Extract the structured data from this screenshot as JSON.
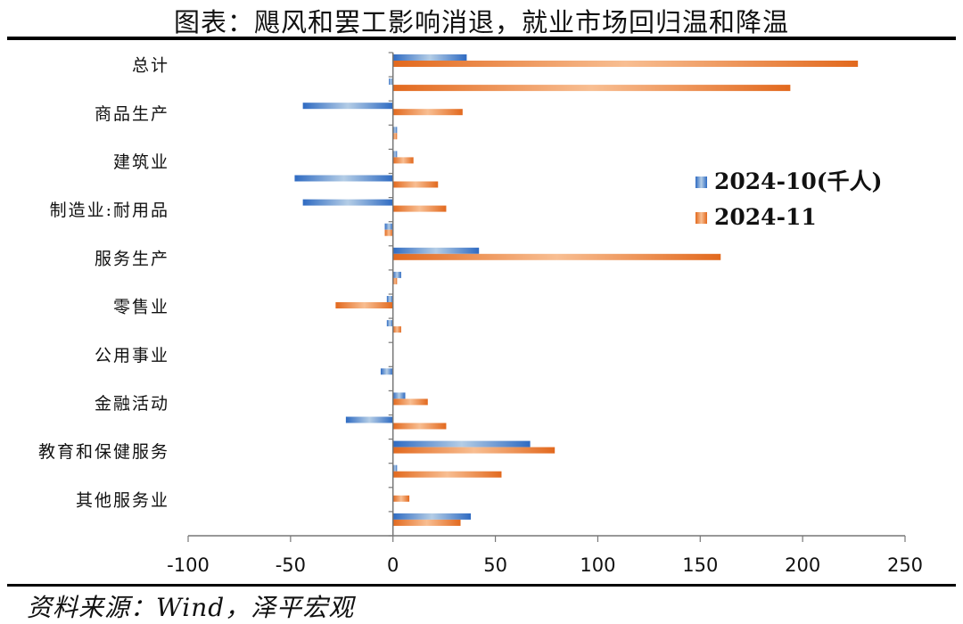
{
  "title": "图表：飓风和罢工影响消退，就业市场回归温和降温",
  "source": "资料来源：Wind，泽平宏观",
  "chart_data": {
    "type": "bar",
    "orientation": "horizontal",
    "title": "图表：飓风和罢工影响消退，就业市场回归温和降温",
    "xlim": [
      -100,
      250
    ],
    "xticks": [
      -100,
      -50,
      0,
      50,
      100,
      150,
      200,
      250
    ],
    "grid": false,
    "legend_position": "right",
    "categories": [
      "总计",
      "",
      "商品生产",
      "",
      "建筑业",
      "",
      "制造业:耐用品",
      "",
      "服务生产",
      "",
      "零售业",
      "",
      "公用事业",
      "",
      "金融活动",
      "",
      "教育和保健服务",
      "",
      "其他服务业",
      ""
    ],
    "series": [
      {
        "name": "2024-10(千人)",
        "color": "#3a73c4",
        "values": [
          36,
          -2,
          -44,
          2,
          2,
          -48,
          -44,
          -4,
          42,
          4,
          -3,
          -3,
          0,
          -6,
          6,
          -23,
          67,
          2,
          0,
          38
        ]
      },
      {
        "name": "2024-11",
        "color": "#e8772e",
        "values": [
          227,
          194,
          34,
          2,
          10,
          22,
          26,
          -4,
          160,
          2,
          -28,
          4,
          0,
          0,
          17,
          26,
          79,
          53,
          8,
          33
        ]
      }
    ]
  }
}
